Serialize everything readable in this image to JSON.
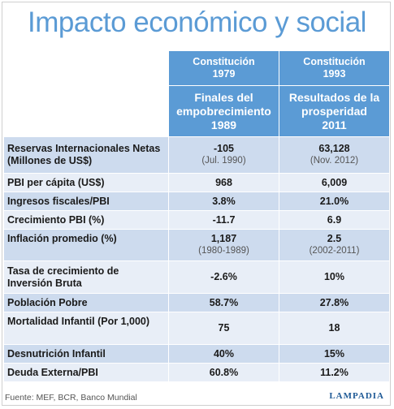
{
  "title": "Impacto económico y social",
  "columns": [
    {
      "constitution": "Constitución\n1979",
      "subtitle": "Finales del\nempobrecimiento\n1989"
    },
    {
      "constitution": "Constitución\n1993",
      "subtitle": "Resultados de la\nprosperidad\n2011"
    }
  ],
  "rows": [
    {
      "label": "Reservas Internacionales Netas\n(Millones de US$)",
      "v1": "-105",
      "v1_note": "(Jul. 1990)",
      "v2": "63,128",
      "v2_note": "(Nov. 2012)"
    },
    {
      "label": "PBI per cápita (US$)",
      "v1": "968",
      "v2": "6,009"
    },
    {
      "label": "Ingresos fiscales/PBI",
      "v1": "3.8%",
      "v2": "21.0%"
    },
    {
      "label": "Crecimiento PBI (%)",
      "v1": "-11.7",
      "v2": "6.9"
    },
    {
      "label": "Inflación promedio (%)",
      "v1": "1,187",
      "v1_note": "(1980-1989)",
      "v2": "2.5",
      "v2_note": "(2002-2011)"
    },
    {
      "label": "Tasa de crecimiento de\nInversión Bruta",
      "v1": "-2.6%",
      "v2": "10%"
    },
    {
      "label": "Población Pobre",
      "v1": "58.7%",
      "v2": "27.8%"
    },
    {
      "label": "Mortalidad Infantil (Por 1,000)",
      "v1": "75",
      "v2": "18"
    },
    {
      "label": "Desnutrición Infantil",
      "v1": "40%",
      "v2": "15%"
    },
    {
      "label": "Deuda Externa/PBI",
      "v1": "60.8%",
      "v2": "11.2%"
    }
  ],
  "footer": "Fuente: MEF, BCR, Banco Mundial",
  "brand": "LAMPADIA",
  "colors": {
    "title": "#5b9bd5",
    "header": "#5b9bd5",
    "row_dark": "#cddbee",
    "row_light": "#e8eef7"
  }
}
